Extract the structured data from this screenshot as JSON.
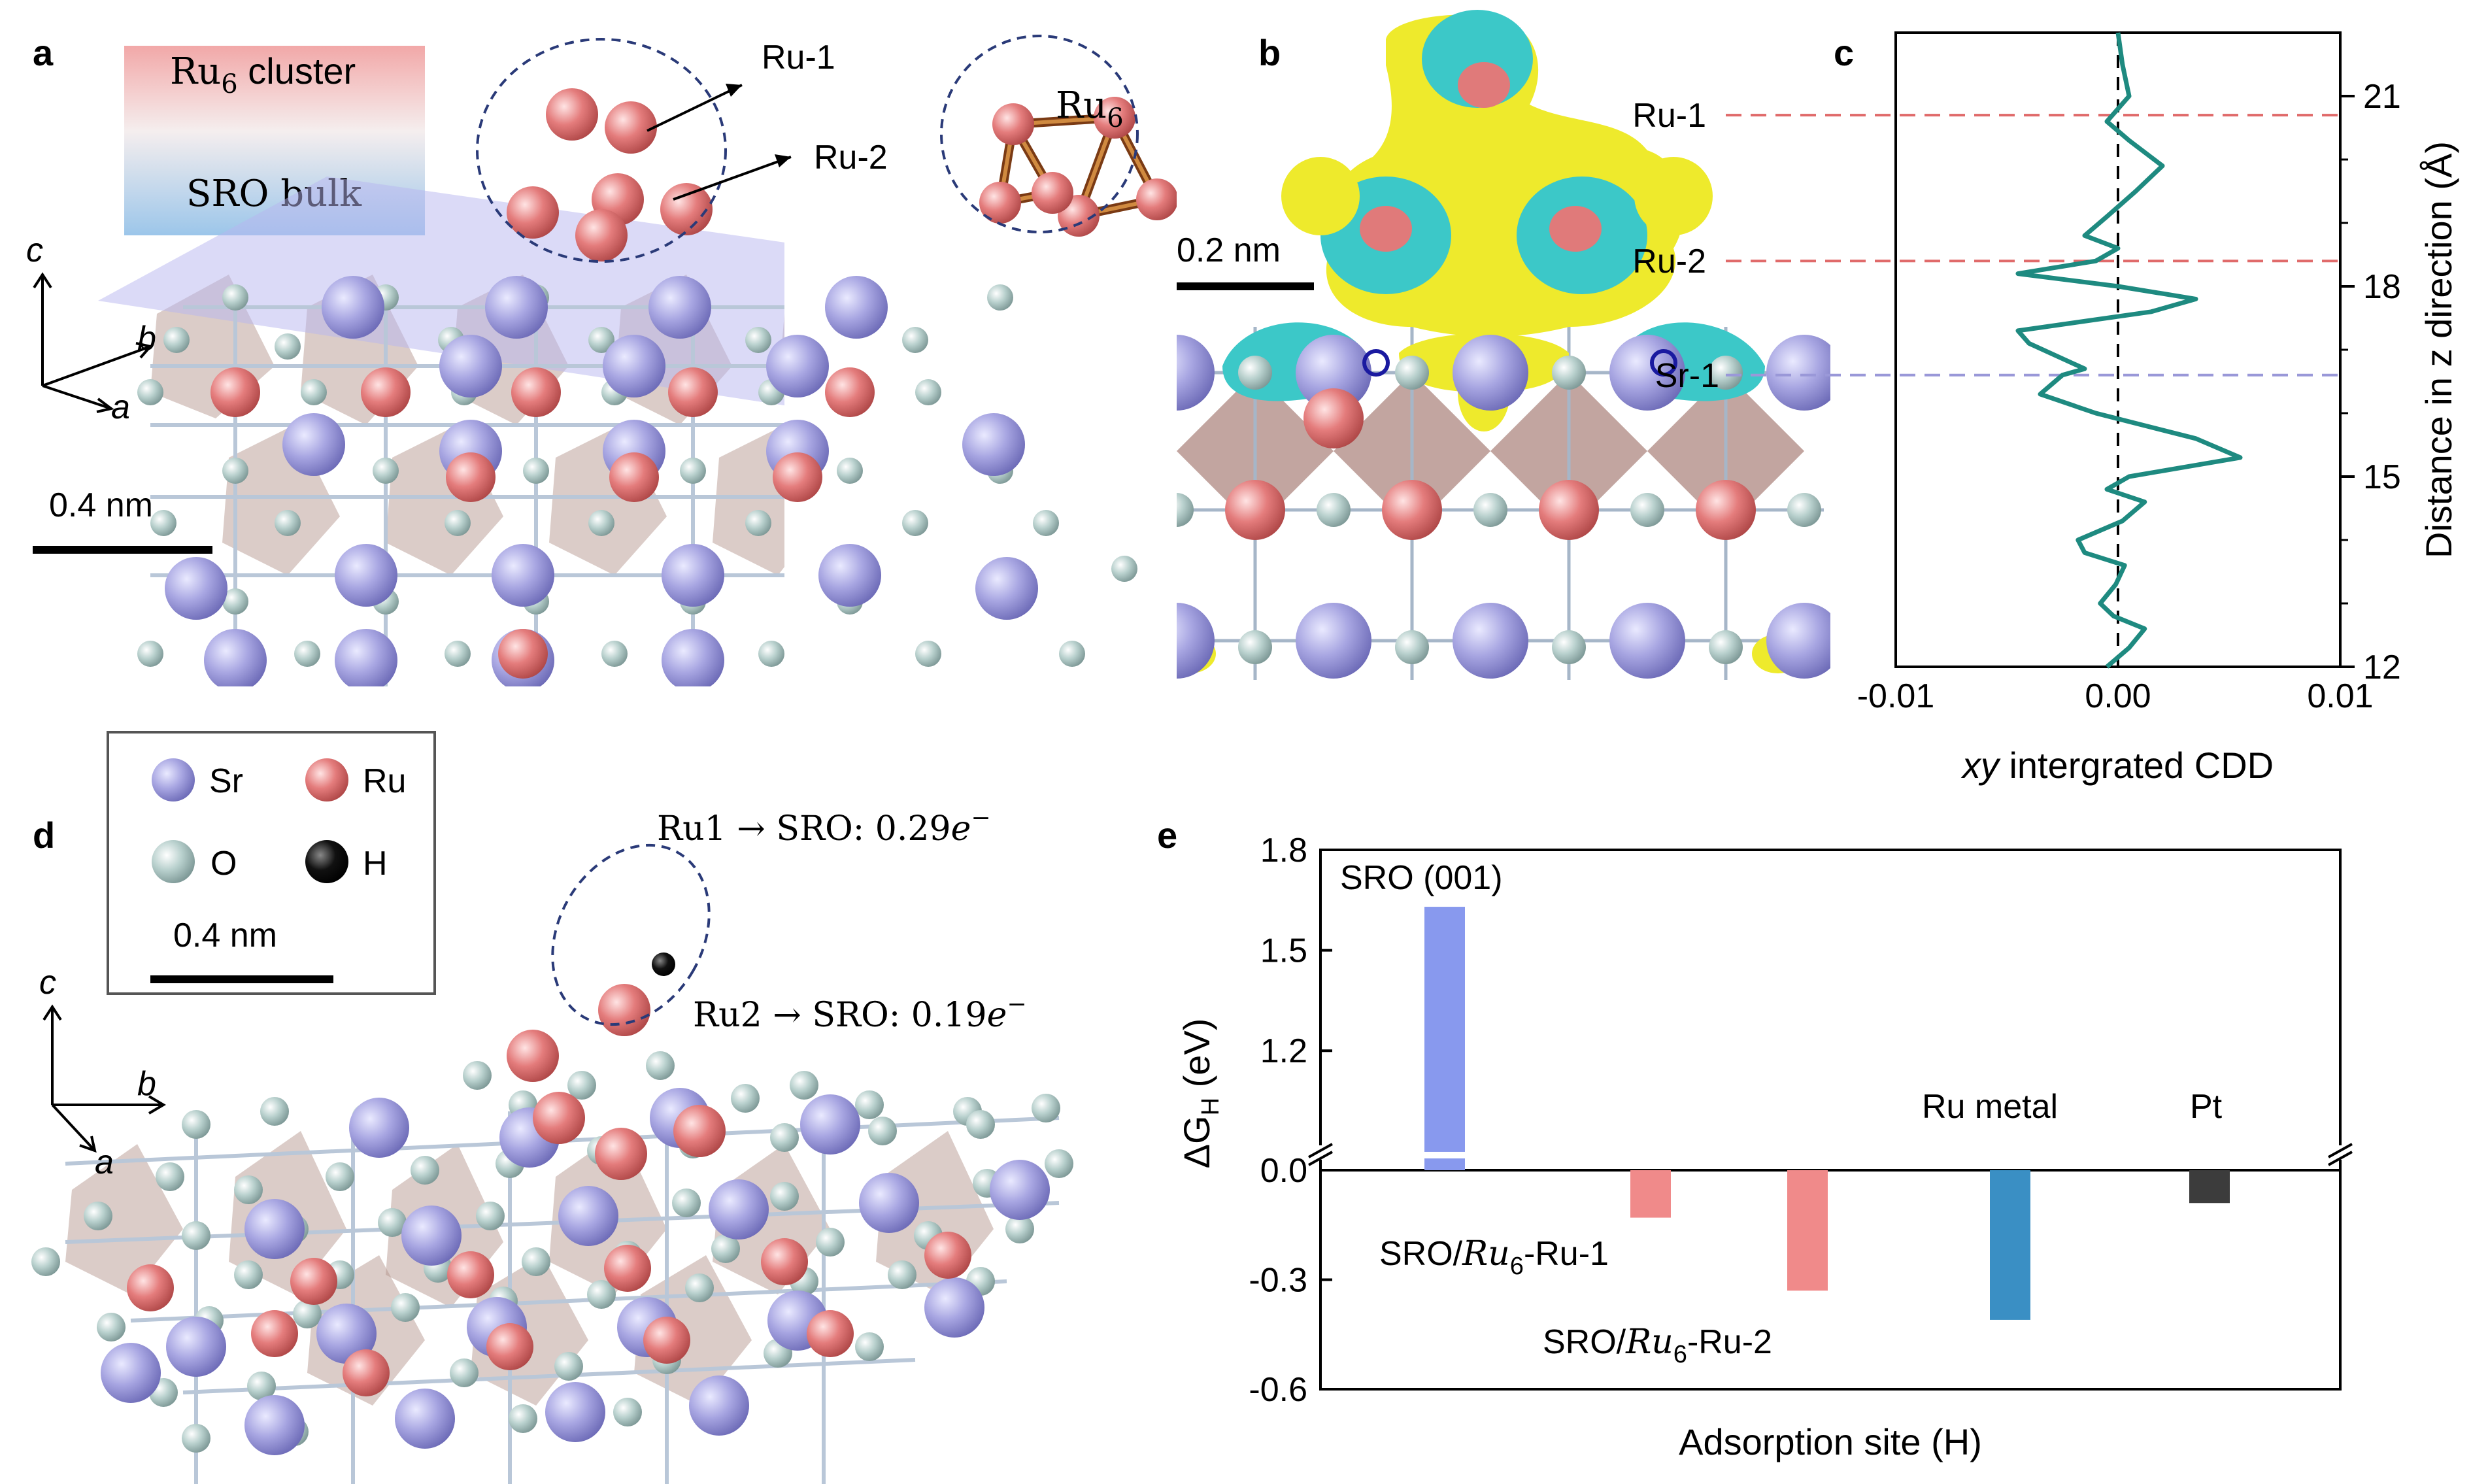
{
  "panel_labels": {
    "a": "a",
    "b": "b",
    "c": "c",
    "d": "d",
    "e": "e"
  },
  "panel_a": {
    "legend_top": "Ru",
    "legend_top_sub": "6",
    "legend_top_suffix": " cluster",
    "legend_bottom": "SRO bulk",
    "ru1_label": "Ru-1",
    "ru2_label": "Ru-2",
    "inset_label": "Ru",
    "inset_sub": "6",
    "axis_c": "c",
    "axis_b": "b",
    "axis_a": "a",
    "scale_bar": "0.4 nm",
    "colors": {
      "sr": "#9a98d8",
      "ru": "#e07a7a",
      "o": "#a9c4c1",
      "plane": "#b7b6ef",
      "octa": "#b08e84"
    }
  },
  "panel_b": {
    "scale_bar": "0.2 nm",
    "colors": {
      "yellow": "#eeea2c",
      "cyan": "#3cc8c8"
    }
  },
  "panel_d": {
    "legend": {
      "sr": "Sr",
      "ru": "Ru",
      "o": "O",
      "h": "H",
      "scale_bar": "0.4 nm"
    },
    "transfer1": "Ru1 → SRO: 0.29",
    "transfer2": "Ru2 → SRO: 0.19",
    "electron": "e",
    "electron_sup": "−",
    "axis_c": "c",
    "axis_b": "b",
    "axis_a": "a"
  },
  "chart_data": [
    {
      "panel": "c",
      "type": "line",
      "xlabel_italic": "xy",
      "xlabel_rest": " intergrated CDD",
      "ylabel": "Distance in z direction (Å)",
      "xlim": [
        -0.01,
        0.01
      ],
      "ylim": [
        12,
        22
      ],
      "xticks": [
        "-0.01",
        "0.00",
        "0.01"
      ],
      "yticks": [
        "12",
        "15",
        "18",
        "21"
      ],
      "ref_lines": [
        {
          "label": "Ru-1",
          "y": 20.7,
          "color": "#e06a6a"
        },
        {
          "label": "Ru-2",
          "y": 18.4,
          "color": "#e06a6a"
        },
        {
          "label": "Sr-1",
          "y": 16.6,
          "color": "#9a98d8"
        }
      ],
      "series": [
        {
          "color": "#1e8a80",
          "points": [
            [
              -0.0005,
              12.0
            ],
            [
              0.0005,
              12.3
            ],
            [
              0.0012,
              12.6
            ],
            [
              -0.0002,
              12.8
            ],
            [
              -0.0008,
              13.0
            ],
            [
              -0.0001,
              13.3
            ],
            [
              0.0003,
              13.6
            ],
            [
              -0.0015,
              13.8
            ],
            [
              -0.0018,
              14.0
            ],
            [
              0.0002,
              14.3
            ],
            [
              0.0012,
              14.6
            ],
            [
              -0.0005,
              14.8
            ],
            [
              0.0005,
              15.0
            ],
            [
              0.0055,
              15.3
            ],
            [
              0.0035,
              15.6
            ],
            [
              -0.001,
              16.0
            ],
            [
              -0.0035,
              16.3
            ],
            [
              -0.0025,
              16.6
            ],
            [
              -0.0015,
              16.7
            ],
            [
              -0.004,
              17.1
            ],
            [
              -0.0045,
              17.3
            ],
            [
              0.0015,
              17.6
            ],
            [
              0.0035,
              17.8
            ],
            [
              0.0,
              18.0
            ],
            [
              -0.0045,
              18.2
            ],
            [
              -0.001,
              18.4
            ],
            [
              0.0,
              18.6
            ],
            [
              -0.0015,
              18.8
            ],
            [
              -0.0005,
              19.1
            ],
            [
              0.0008,
              19.5
            ],
            [
              0.002,
              19.9
            ],
            [
              0.0005,
              20.3
            ],
            [
              -0.0005,
              20.6
            ],
            [
              0.0005,
              21.0
            ],
            [
              0.0002,
              21.5
            ],
            [
              0.0,
              22.0
            ]
          ]
        }
      ]
    },
    {
      "panel": "e",
      "type": "bar",
      "xlabel": "Adsorption site (H)",
      "ylabel": "ΔG",
      "ylabel_sub": "H",
      "ylabel_unit": " (eV)",
      "ylim": [
        -0.6,
        1.8
      ],
      "y_break": true,
      "yticks": [
        "-0.6",
        "-0.3",
        "0.0",
        "1.2",
        "1.5",
        "1.8"
      ],
      "bars": [
        {
          "label": "SRO (001)",
          "value": 1.63,
          "color": "#8899ee"
        },
        {
          "label": "SRO/Ru6-Ru-1",
          "value": -0.13,
          "color": "#f08a8a"
        },
        {
          "label": "SRO/Ru6-Ru-2",
          "value": -0.33,
          "color": "#f08a8a"
        },
        {
          "label": "Ru metal",
          "value": -0.41,
          "color": "#3a8fc4"
        },
        {
          "label": "Pt",
          "value": -0.09,
          "color": "#3c3c3c"
        }
      ],
      "bar_label_parts": {
        "sro_prefix": "SRO/",
        "ru": "Ru",
        "sub": "6",
        "suffix1": "-Ru-1",
        "suffix2": "-Ru-2"
      }
    }
  ]
}
